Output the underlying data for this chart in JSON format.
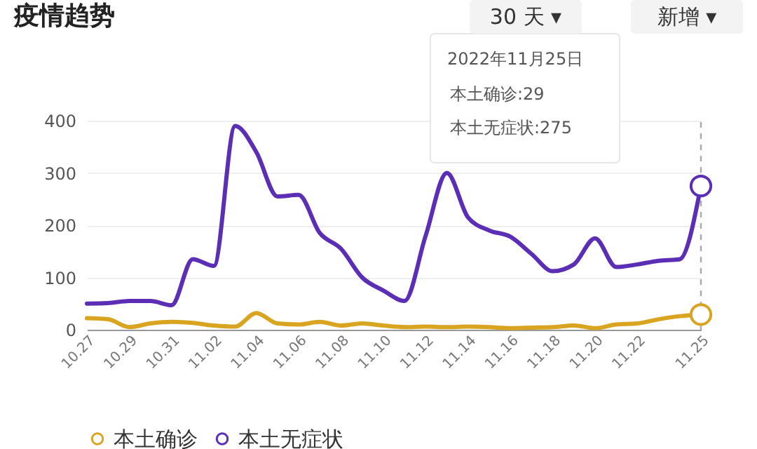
{
  "chart_data": {
    "type": "line",
    "title": "疫情趋势",
    "categories": [
      "10.27",
      null,
      "10.29",
      null,
      "10.31",
      null,
      "11.02",
      null,
      "11.04",
      null,
      "11.06",
      null,
      "11.08",
      null,
      "11.10",
      null,
      "11.12",
      null,
      "11.14",
      null,
      "11.16",
      null,
      "11.18",
      null,
      "11.20",
      null,
      "11.22",
      null,
      null,
      "11.25"
    ],
    "series": [
      {
        "name": "本土确诊",
        "color": "#d9a420",
        "values": [
          22,
          20,
          5,
          12,
          15,
          13,
          8,
          6,
          32,
          12,
          10,
          15,
          8,
          12,
          8,
          5,
          6,
          5,
          6,
          5,
          3,
          4,
          5,
          8,
          3,
          10,
          12,
          20,
          26,
          29
        ]
      },
      {
        "name": "本土无症状",
        "color": "#5b2eb5",
        "values": [
          50,
          51,
          55,
          55,
          47,
          135,
          122,
          390,
          340,
          255,
          258,
          185,
          155,
          100,
          75,
          55,
          180,
          300,
          215,
          190,
          178,
          145,
          112,
          125,
          175,
          120,
          125,
          132,
          135,
          275
        ]
      }
    ],
    "ylim": [
      0,
      400
    ],
    "yticks": [
      0,
      100,
      200,
      300,
      400
    ],
    "grid": "y",
    "legend": "bottom",
    "marker": "none",
    "line_style": "solid",
    "ref_lines": [
      {
        "axis": "x",
        "value": "11.25",
        "line_style": "dashed",
        "color": "#aaaaaa"
      }
    ],
    "annotations": [
      "30 天 ▾",
      "新增 ▾",
      "2022年11月25日",
      "本土确诊:29",
      "本土无症状:275"
    ]
  }
}
